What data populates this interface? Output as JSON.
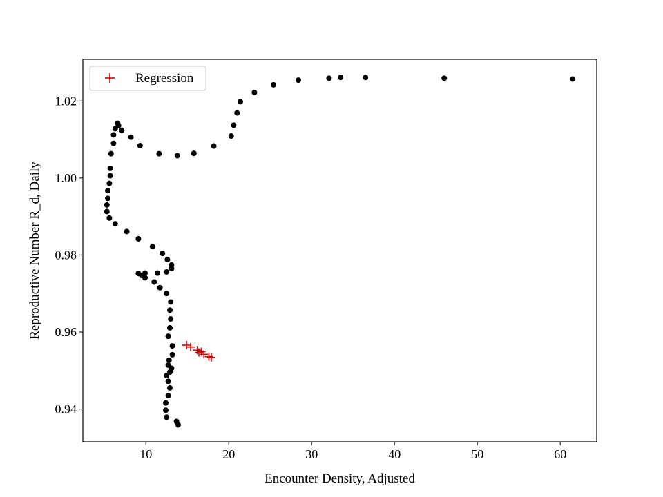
{
  "chart_data": {
    "type": "scatter",
    "title": "",
    "xlabel": "Encounter Density, Adjusted",
    "ylabel": "Reproductive Number R_d, Daily",
    "xlim": [
      2.4,
      64.4
    ],
    "ylim": [
      0.9315,
      1.0308
    ],
    "xticks": [
      10,
      20,
      30,
      40,
      50,
      60
    ],
    "yticks": [
      0.94,
      0.96,
      0.98,
      1.0,
      1.02
    ],
    "ytick_labels": [
      "0.94",
      "0.96",
      "0.98",
      "1.00",
      "1.02"
    ],
    "grid": false,
    "legend": {
      "position": "top-left"
    },
    "series": [
      {
        "marker": "dot",
        "color": "#000000",
        "points": [
          [
            13.9,
            0.9359
          ],
          [
            13.7,
            0.9368
          ],
          [
            12.5,
            0.9379
          ],
          [
            12.4,
            0.9397
          ],
          [
            12.4,
            0.9416
          ],
          [
            12.7,
            0.9435
          ],
          [
            12.9,
            0.9455
          ],
          [
            12.7,
            0.9472
          ],
          [
            12.5,
            0.9487
          ],
          [
            13.1,
            0.9506
          ],
          [
            12.9,
            0.9496
          ],
          [
            12.7,
            0.9514
          ],
          [
            12.8,
            0.9527
          ],
          [
            13.2,
            0.9541
          ],
          [
            13.2,
            0.9564
          ],
          [
            12.7,
            0.9589
          ],
          [
            12.9,
            0.9611
          ],
          [
            13.0,
            0.9634
          ],
          [
            12.9,
            0.9657
          ],
          [
            13.0,
            0.9678
          ],
          [
            12.5,
            0.97
          ],
          [
            11.7,
            0.9715
          ],
          [
            11.0,
            0.973
          ],
          [
            9.9,
            0.9741
          ],
          [
            9.5,
            0.9747
          ],
          [
            9.1,
            0.9752
          ],
          [
            9.9,
            0.9753
          ],
          [
            11.4,
            0.9753
          ],
          [
            12.5,
            0.9756
          ],
          [
            13.1,
            0.9765
          ],
          [
            13.1,
            0.9774
          ],
          [
            12.6,
            0.9788
          ],
          [
            12.0,
            0.9804
          ],
          [
            10.8,
            0.9822
          ],
          [
            9.1,
            0.9842
          ],
          [
            7.7,
            0.9861
          ],
          [
            6.3,
            0.9881
          ],
          [
            5.6,
            0.9896
          ],
          [
            5.3,
            0.9913
          ],
          [
            5.3,
            0.993
          ],
          [
            5.4,
            0.9947
          ],
          [
            5.4,
            0.9967
          ],
          [
            5.6,
            0.9986
          ],
          [
            5.7,
            1.0006
          ],
          [
            5.7,
            1.0025
          ],
          [
            5.8,
            1.0063
          ],
          [
            6.1,
            1.009
          ],
          [
            6.1,
            1.0112
          ],
          [
            6.3,
            1.0128
          ],
          [
            6.6,
            1.0142
          ],
          [
            6.7,
            1.0136
          ],
          [
            7.1,
            1.0124
          ],
          [
            8.2,
            1.0106
          ],
          [
            9.3,
            1.0084
          ],
          [
            11.6,
            1.0063
          ],
          [
            13.8,
            1.0058
          ],
          [
            15.8,
            1.0064
          ],
          [
            18.2,
            1.0083
          ],
          [
            20.3,
            1.0109
          ],
          [
            20.6,
            1.0137
          ],
          [
            21.0,
            1.0169
          ],
          [
            21.4,
            1.0198
          ],
          [
            23.1,
            1.0222
          ],
          [
            25.4,
            1.0242
          ],
          [
            28.4,
            1.0254
          ],
          [
            32.1,
            1.0259
          ],
          [
            33.5,
            1.0261
          ],
          [
            36.5,
            1.0261
          ],
          [
            46.0,
            1.0259
          ],
          [
            61.5,
            1.0257
          ]
        ]
      },
      {
        "name": "Regression",
        "marker": "plus",
        "color": "#e00000",
        "points": [
          [
            14.9,
            0.9566
          ],
          [
            15.4,
            0.9561
          ],
          [
            16.2,
            0.9553
          ],
          [
            16.4,
            0.9547
          ],
          [
            16.7,
            0.9549
          ],
          [
            17.0,
            0.9542
          ],
          [
            17.6,
            0.9536
          ],
          [
            17.9,
            0.9534
          ]
        ]
      }
    ]
  }
}
